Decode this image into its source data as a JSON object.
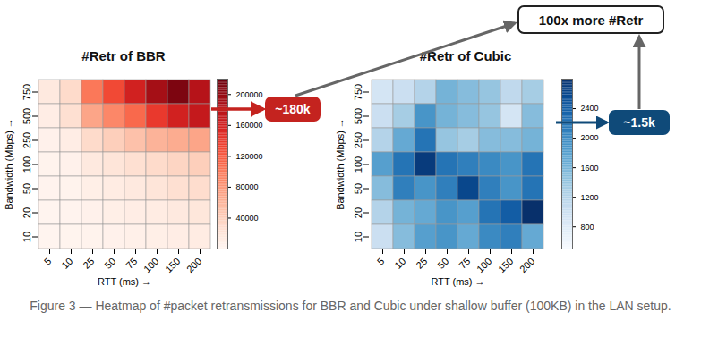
{
  "chart_data": [
    {
      "type": "heatmap",
      "title": "#Retr of BBR",
      "x_label": "RTT (ms) →",
      "y_label": "Bandwidth (Mbps) →",
      "x": [
        5,
        10,
        25,
        50,
        75,
        100,
        150,
        200
      ],
      "y": [
        750,
        500,
        250,
        100,
        50,
        20,
        10
      ],
      "values": [
        [
          15000,
          30000,
          100000,
          130000,
          160000,
          190000,
          210000,
          180000
        ],
        [
          10000,
          25000,
          70000,
          90000,
          110000,
          140000,
          160000,
          170000
        ],
        [
          5000,
          10000,
          30000,
          40000,
          50000,
          60000,
          65000,
          70000
        ],
        [
          3000,
          5000,
          15000,
          20000,
          25000,
          30000,
          35000,
          40000
        ],
        [
          2000,
          3000,
          8000,
          12000,
          15000,
          20000,
          25000,
          28000
        ],
        [
          1000,
          2000,
          5000,
          8000,
          10000,
          12000,
          15000,
          18000
        ],
        [
          1000,
          1500,
          3000,
          5000,
          6000,
          8000,
          10000,
          12000
        ]
      ],
      "color": "Reds",
      "colorbar": {
        "range": [
          0,
          220000
        ],
        "ticks": [
          40000,
          80000,
          120000,
          160000,
          200000
        ]
      }
    },
    {
      "type": "heatmap",
      "title": "#Retr of Cubic",
      "x_label": "RTT (ms) →",
      "y_label": "Bandwidth (Mbps) →",
      "x": [
        5,
        10,
        25,
        50,
        75,
        100,
        150,
        200
      ],
      "y": [
        750,
        500,
        250,
        100,
        50,
        20,
        10
      ],
      "values": [
        [
          900,
          1000,
          1200,
          1600,
          1500,
          1400,
          1100,
          1300
        ],
        [
          1000,
          1300,
          1900,
          1600,
          1500,
          1400,
          900,
          1500
        ],
        [
          1200,
          1700,
          2200,
          1400,
          1300,
          1500,
          1500,
          1600
        ],
        [
          1800,
          2200,
          2700,
          2200,
          2100,
          2000,
          1900,
          2200
        ],
        [
          1500,
          2100,
          1900,
          2100,
          2600,
          2100,
          1900,
          2200
        ],
        [
          1200,
          1600,
          1700,
          1900,
          1800,
          2200,
          2400,
          2800
        ],
        [
          1000,
          1500,
          1800,
          1900,
          1700,
          2000,
          2100,
          1700
        ]
      ],
      "color": "Blues",
      "colorbar": {
        "range": [
          500,
          2800
        ],
        "ticks": [
          800,
          1200,
          1600,
          2000,
          2400
        ]
      }
    }
  ],
  "annotations": [
    {
      "text": "~180k"
    },
    {
      "text": "~1.5k"
    },
    {
      "text": "100x more #Retr"
    }
  ],
  "caption": "Figure 3 — Heatmap of #packet retransmissions for BBR and Cubic under shallow buffer (100KB) in the LAN setup."
}
